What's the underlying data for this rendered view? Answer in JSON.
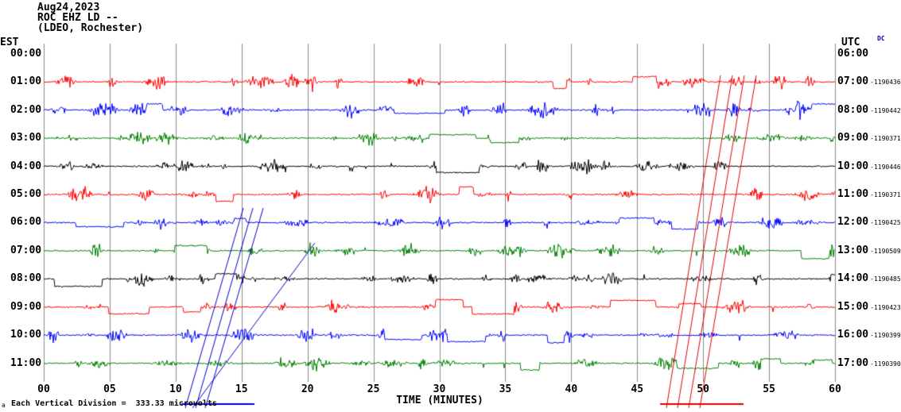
{
  "header": {
    "date": "Aug24,2023",
    "station": "ROC EHZ LD --",
    "network": "(LDEO, Rochester)",
    "left_tz": "EST",
    "right_tz": "UTC",
    "dc": "DC"
  },
  "x_axis": {
    "label": "TIME (MINUTES)",
    "ticks": [
      "00",
      "05",
      "10",
      "15",
      "20",
      "25",
      "30",
      "35",
      "40",
      "45",
      "50",
      "55",
      "60"
    ]
  },
  "footer": {
    "scale_note": "Each Vertical Division =  333.33 microvolts",
    "marker": "a"
  },
  "rows": [
    {
      "est": "00:00",
      "utc": "06:00",
      "dc_offset": "",
      "color": null
    },
    {
      "est": "01:00",
      "utc": "07:00",
      "dc_offset": "-1190436",
      "color": "#ff0000"
    },
    {
      "est": "02:00",
      "utc": "08:00",
      "dc_offset": "-1190442",
      "color": "#0000ff"
    },
    {
      "est": "03:00",
      "utc": "09:00",
      "dc_offset": "-1190371",
      "color": "#008000"
    },
    {
      "est": "04:00",
      "utc": "10:00",
      "dc_offset": "-1190446",
      "color": "#000000"
    },
    {
      "est": "05:00",
      "utc": "11:00",
      "dc_offset": "-1190371",
      "color": "#ff0000"
    },
    {
      "est": "06:00",
      "utc": "12:00",
      "dc_offset": "-1190425",
      "color": "#0000ff"
    },
    {
      "est": "07:00",
      "utc": "13:00",
      "dc_offset": "-1190509",
      "color": "#008000"
    },
    {
      "est": "08:00",
      "utc": "14:00",
      "dc_offset": "-1190485",
      "color": "#000000"
    },
    {
      "est": "09:00",
      "utc": "15:00",
      "dc_offset": "-1190423",
      "color": "#ff0000"
    },
    {
      "est": "10:00",
      "utc": "16:00",
      "dc_offset": "-1190399",
      "color": "#0000ff"
    },
    {
      "est": "11:00",
      "utc": "17:00",
      "dc_offset": "-1190390",
      "color": "#008000"
    }
  ],
  "overlays": {
    "blue": "#0000cc",
    "red": "#dd0000",
    "blue_lines": [
      [
        233,
        514,
        306,
        262
      ],
      [
        246,
        514,
        318,
        262
      ],
      [
        258,
        514,
        331,
        262
      ],
      [
        242,
        514,
        396,
        306
      ]
    ],
    "red_lines": [
      [
        838,
        514,
        906,
        95
      ],
      [
        852,
        514,
        921,
        95
      ],
      [
        866,
        514,
        936,
        95
      ],
      [
        880,
        514,
        951,
        95
      ]
    ],
    "blue_baseline": [
      228,
      509,
      320,
      509
    ],
    "red_baseline": [
      830,
      509,
      935,
      509
    ]
  },
  "chart_data": {
    "type": "line",
    "subtype": "helicorder seismogram (webicorder)",
    "title": "ROC EHZ LD -- (LDEO, Rochester)",
    "date": "Aug24,2023",
    "xlabel": "TIME (MINUTES)",
    "x_range": [
      0,
      60
    ],
    "x_tick_step": 5,
    "left_axis": "EST hours 00:00 to 11:00",
    "right_axis": "UTC hours 06:00 to 17:00",
    "vertical_division_microvolts": 333.33,
    "trace_color_cycle": [
      "#ff0000",
      "#0000ff",
      "#008000",
      "#000000"
    ],
    "traces": [
      {
        "est_start": "01:00",
        "utc_start": "07:00",
        "color": "red",
        "dc_offset": -1190436
      },
      {
        "est_start": "02:00",
        "utc_start": "08:00",
        "color": "blue",
        "dc_offset": -1190442
      },
      {
        "est_start": "03:00",
        "utc_start": "09:00",
        "color": "green",
        "dc_offset": -1190371
      },
      {
        "est_start": "04:00",
        "utc_start": "10:00",
        "color": "black",
        "dc_offset": -1190446
      },
      {
        "est_start": "05:00",
        "utc_start": "11:00",
        "color": "red",
        "dc_offset": -1190371
      },
      {
        "est_start": "06:00",
        "utc_start": "12:00",
        "color": "blue",
        "dc_offset": -1190425
      },
      {
        "est_start": "07:00",
        "utc_start": "13:00",
        "color": "green",
        "dc_offset": -1190509
      },
      {
        "est_start": "08:00",
        "utc_start": "14:00",
        "color": "black",
        "dc_offset": -1190485
      },
      {
        "est_start": "09:00",
        "utc_start": "15:00",
        "color": "red",
        "dc_offset": -1190423
      },
      {
        "est_start": "10:00",
        "utc_start": "16:00",
        "color": "blue",
        "dc_offset": -1190399
      },
      {
        "est_start": "11:00",
        "utc_start": "17:00",
        "color": "green",
        "dc_offset": -1190390
      }
    ]
  }
}
